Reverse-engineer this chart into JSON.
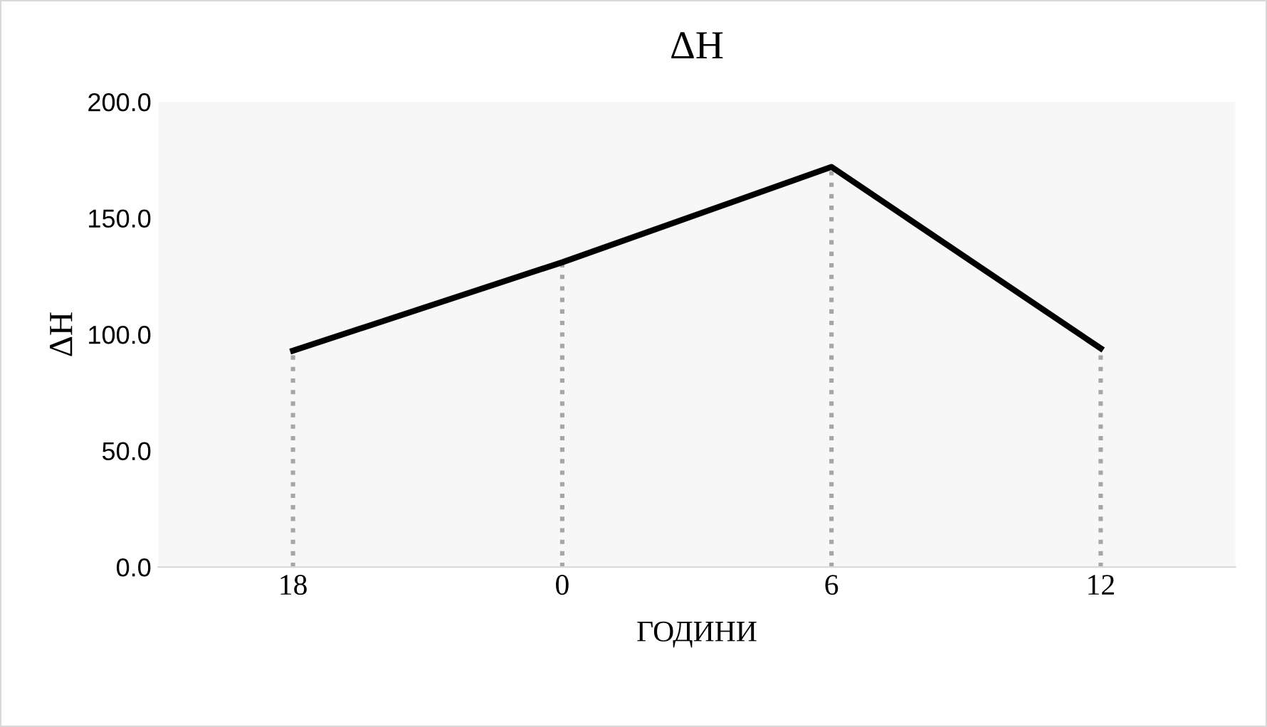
{
  "chart_data": {
    "type": "line",
    "title": "ΔH",
    "xlabel": "ГОДИНИ",
    "ylabel": "ΔH",
    "categories": [
      "18",
      "0",
      "6",
      "12"
    ],
    "series": [
      {
        "color": "#000000",
        "values": [
          93,
          131,
          172,
          94
        ]
      }
    ],
    "ylim": [
      0,
      200
    ],
    "yticks": [
      {
        "value": 0,
        "label": "0.0"
      },
      {
        "value": 50,
        "label": "50.0"
      },
      {
        "value": 100,
        "label": "100.0"
      },
      {
        "value": 150,
        "label": "150.0"
      },
      {
        "value": 200,
        "label": "200.0"
      }
    ],
    "grid": false,
    "legend": false,
    "marker": "none",
    "line_style": "solid",
    "ref_lines": [
      {
        "axis": "x",
        "value": "18",
        "color": "#a6a6a6",
        "line_style": "dotted"
      },
      {
        "axis": "x",
        "value": "0",
        "color": "#a6a6a6",
        "line_style": "dotted"
      },
      {
        "axis": "x",
        "value": "6",
        "color": "#a6a6a6",
        "line_style": "dotted"
      },
      {
        "axis": "x",
        "value": "12",
        "color": "#a6a6a6",
        "line_style": "dotted"
      }
    ]
  }
}
